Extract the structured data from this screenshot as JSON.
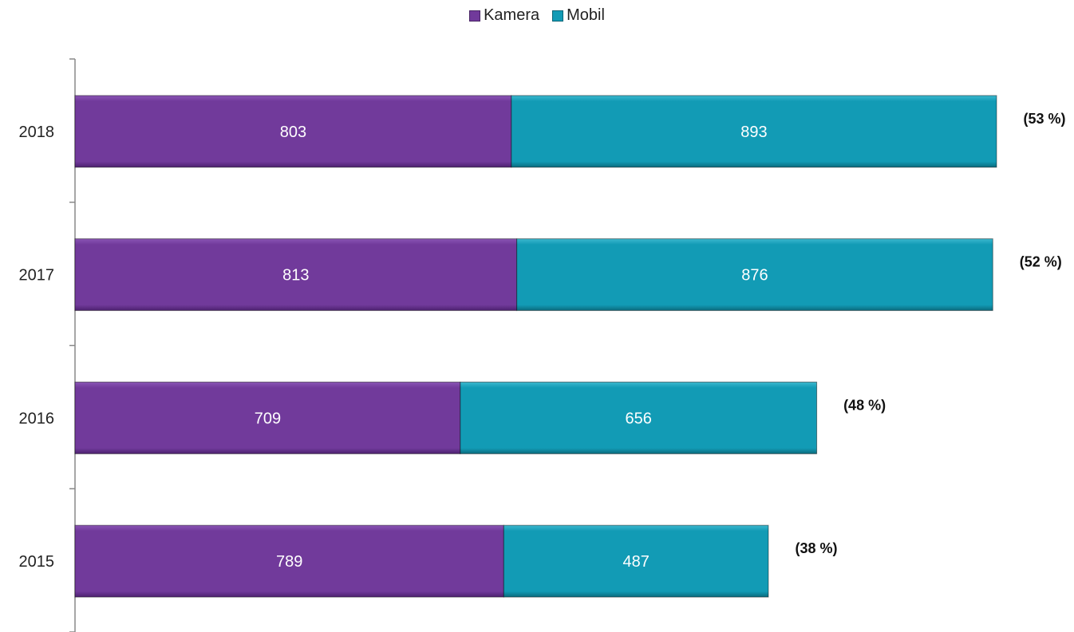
{
  "chart_data": {
    "type": "bar",
    "orientation": "horizontal",
    "stacked": true,
    "categories": [
      "2015",
      "2016",
      "2017",
      "2018"
    ],
    "series": [
      {
        "name": "Kamera",
        "values": [
          789,
          709,
          813,
          803
        ],
        "color": "#713a9b"
      },
      {
        "name": "Mobil",
        "values": [
          487,
          656,
          876,
          893
        ],
        "color": "#129bb5"
      }
    ],
    "annotations": [
      "(38 %)",
      "(48 %)",
      "(52 %)",
      "(53 %)"
    ],
    "title": "",
    "xlabel": "",
    "ylabel": "",
    "xlim": [
      0,
      1740
    ],
    "grid": false,
    "legend": "top-center"
  }
}
